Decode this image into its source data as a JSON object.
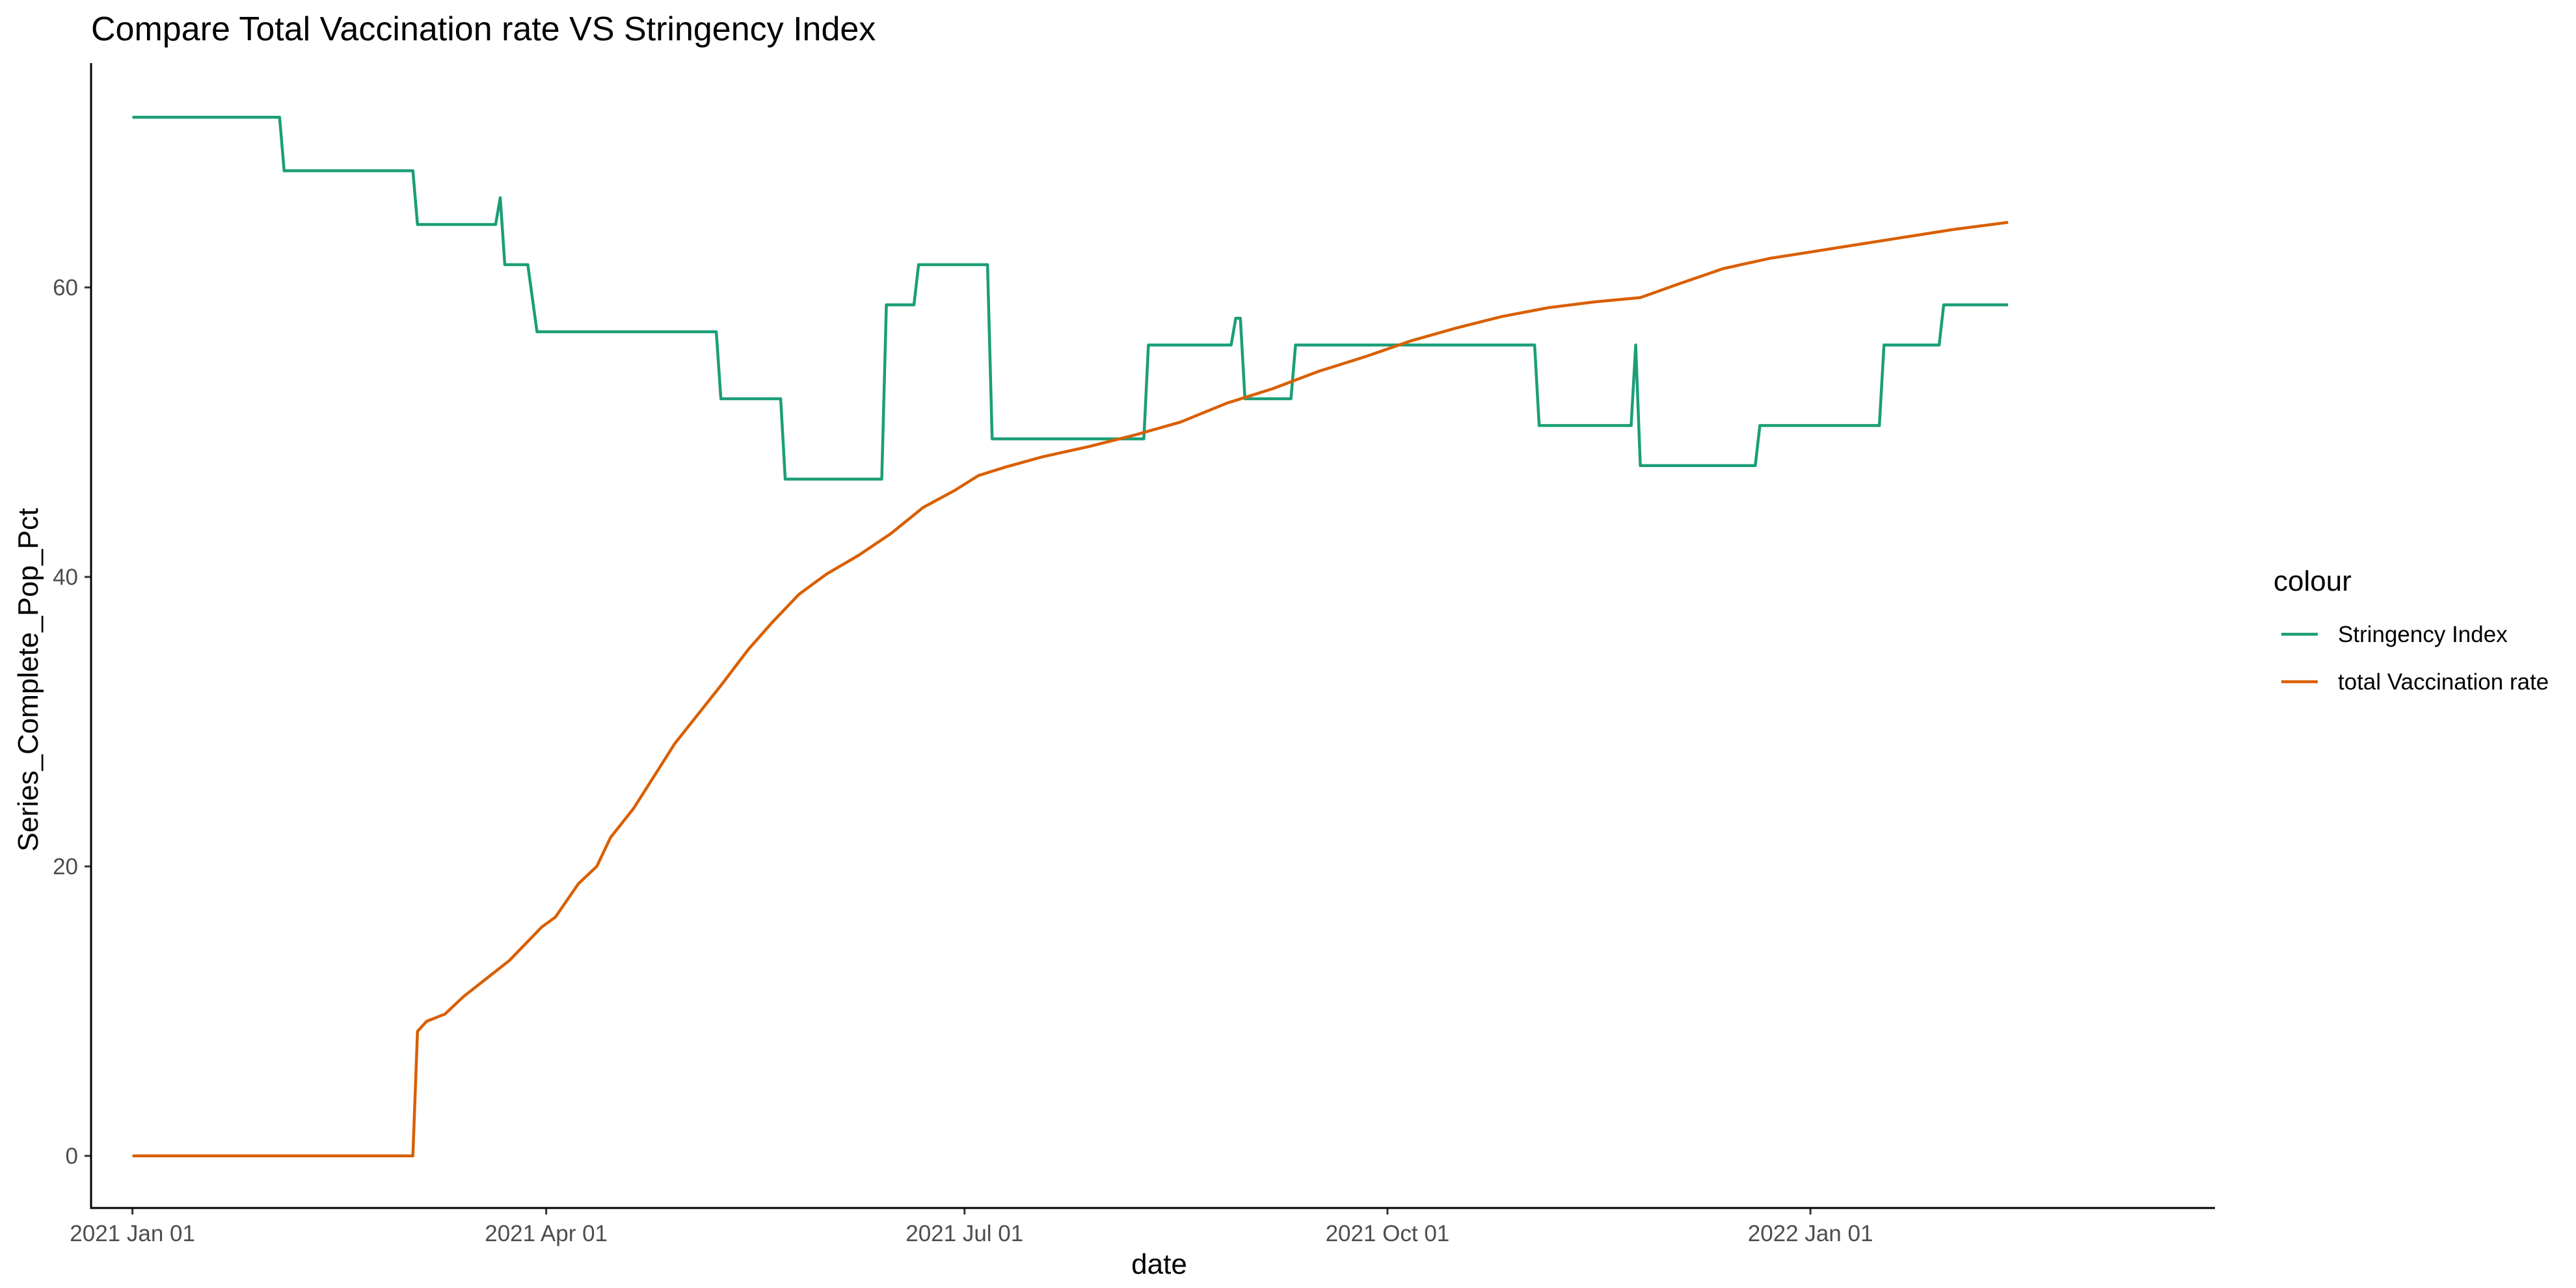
{
  "chart_data": {
    "type": "line",
    "title": "Compare Total Vaccination rate VS Stringency Index",
    "xlabel": "date",
    "ylabel": "Series_Complete_Pop_Pct",
    "x_axis": {
      "type": "date",
      "range": [
        "2020-12-23",
        "2022-03-30"
      ],
      "ticks": [
        {
          "date": "2021-01-01",
          "label": "2021 Jan 01"
        },
        {
          "date": "2021-04-01",
          "label": "2021 Apr 01"
        },
        {
          "date": "2021-07-01",
          "label": "2021 Jul 01"
        },
        {
          "date": "2021-10-01",
          "label": "2021 Oct 01"
        },
        {
          "date": "2022-01-01",
          "label": "2022 Jan 01"
        }
      ]
    },
    "y_axis": {
      "range": [
        -3.6,
        75.5
      ],
      "ticks": [
        {
          "value": 0,
          "label": "0"
        },
        {
          "value": 20,
          "label": "20"
        },
        {
          "value": 40,
          "label": "40"
        },
        {
          "value": 60,
          "label": "60"
        }
      ]
    },
    "grid": false,
    "legend": {
      "title": "colour",
      "placement": "right",
      "entries": [
        "Stringency Index",
        "total Vaccination rate"
      ]
    },
    "series": [
      {
        "name": "Stringency Index",
        "color": "#1b9e77",
        "points": [
          [
            "2021-01-01",
            71.76
          ],
          [
            "2021-02-02",
            71.76
          ],
          [
            "2021-02-03",
            68.06
          ],
          [
            "2021-03-03",
            68.06
          ],
          [
            "2021-03-04",
            64.35
          ],
          [
            "2021-03-21",
            64.35
          ],
          [
            "2021-03-22",
            66.2
          ],
          [
            "2021-03-23",
            61.57
          ],
          [
            "2021-03-28",
            61.57
          ],
          [
            "2021-03-29",
            59.26
          ],
          [
            "2021-03-30",
            56.94
          ],
          [
            "2021-05-08",
            56.94
          ],
          [
            "2021-05-09",
            52.31
          ],
          [
            "2021-05-22",
            52.31
          ],
          [
            "2021-05-23",
            46.76
          ],
          [
            "2021-06-13",
            46.76
          ],
          [
            "2021-06-14",
            58.8
          ],
          [
            "2021-06-20",
            58.8
          ],
          [
            "2021-06-21",
            61.57
          ],
          [
            "2021-07-06",
            61.57
          ],
          [
            "2021-07-07",
            49.54
          ],
          [
            "2021-08-09",
            49.54
          ],
          [
            "2021-08-10",
            56.02
          ],
          [
            "2021-08-28",
            56.02
          ],
          [
            "2021-08-29",
            57.87
          ],
          [
            "2021-08-30",
            57.87
          ],
          [
            "2021-08-31",
            52.31
          ],
          [
            "2021-09-10",
            52.31
          ],
          [
            "2021-09-11",
            56.02
          ],
          [
            "2021-11-02",
            56.02
          ],
          [
            "2021-11-03",
            50.46
          ],
          [
            "2021-11-23",
            50.46
          ],
          [
            "2021-11-24",
            56.02
          ],
          [
            "2021-11-25",
            47.69
          ],
          [
            "2021-12-20",
            47.69
          ],
          [
            "2021-12-21",
            50.46
          ],
          [
            "2022-01-16",
            50.46
          ],
          [
            "2022-01-17",
            56.02
          ],
          [
            "2022-01-29",
            56.02
          ],
          [
            "2022-01-30",
            58.8
          ],
          [
            "2022-02-13",
            58.8
          ]
        ]
      },
      {
        "name": "total Vaccination rate",
        "color": "#d95f02",
        "points": [
          [
            "2021-01-01",
            0
          ],
          [
            "2021-03-03",
            0
          ],
          [
            "2021-03-04",
            8.6
          ],
          [
            "2021-03-06",
            9.3
          ],
          [
            "2021-03-10",
            9.8
          ],
          [
            "2021-03-14",
            11.0
          ],
          [
            "2021-03-20",
            12.5
          ],
          [
            "2021-03-24",
            13.5
          ],
          [
            "2021-03-31",
            15.8
          ],
          [
            "2021-04-03",
            16.5
          ],
          [
            "2021-04-08",
            18.8
          ],
          [
            "2021-04-12",
            20.0
          ],
          [
            "2021-04-15",
            22.0
          ],
          [
            "2021-04-20",
            24.0
          ],
          [
            "2021-04-24",
            26.0
          ],
          [
            "2021-04-29",
            28.5
          ],
          [
            "2021-05-04",
            30.5
          ],
          [
            "2021-05-09",
            32.5
          ],
          [
            "2021-05-15",
            35.0
          ],
          [
            "2021-05-20",
            36.8
          ],
          [
            "2021-05-26",
            38.8
          ],
          [
            "2021-06-01",
            40.2
          ],
          [
            "2021-06-08",
            41.5
          ],
          [
            "2021-06-15",
            43.0
          ],
          [
            "2021-06-22",
            44.8
          ],
          [
            "2021-06-29",
            46.0
          ],
          [
            "2021-07-04",
            47.0
          ],
          [
            "2021-07-10",
            47.6
          ],
          [
            "2021-07-18",
            48.3
          ],
          [
            "2021-07-28",
            49.0
          ],
          [
            "2021-08-07",
            49.8
          ],
          [
            "2021-08-17",
            50.7
          ],
          [
            "2021-08-27",
            52.0
          ],
          [
            "2021-09-06",
            53.0
          ],
          [
            "2021-09-16",
            54.2
          ],
          [
            "2021-09-26",
            55.2
          ],
          [
            "2021-10-06",
            56.3
          ],
          [
            "2021-10-16",
            57.2
          ],
          [
            "2021-10-26",
            58.0
          ],
          [
            "2021-11-05",
            58.6
          ],
          [
            "2021-11-15",
            59.0
          ],
          [
            "2021-11-25",
            59.3
          ],
          [
            "2021-12-03",
            60.2
          ],
          [
            "2021-12-13",
            61.3
          ],
          [
            "2021-12-23",
            62.0
          ],
          [
            "2022-01-02",
            62.5
          ],
          [
            "2022-01-12",
            63.0
          ],
          [
            "2022-01-22",
            63.5
          ],
          [
            "2022-02-01",
            64.0
          ],
          [
            "2022-02-13",
            64.5
          ]
        ]
      }
    ]
  }
}
